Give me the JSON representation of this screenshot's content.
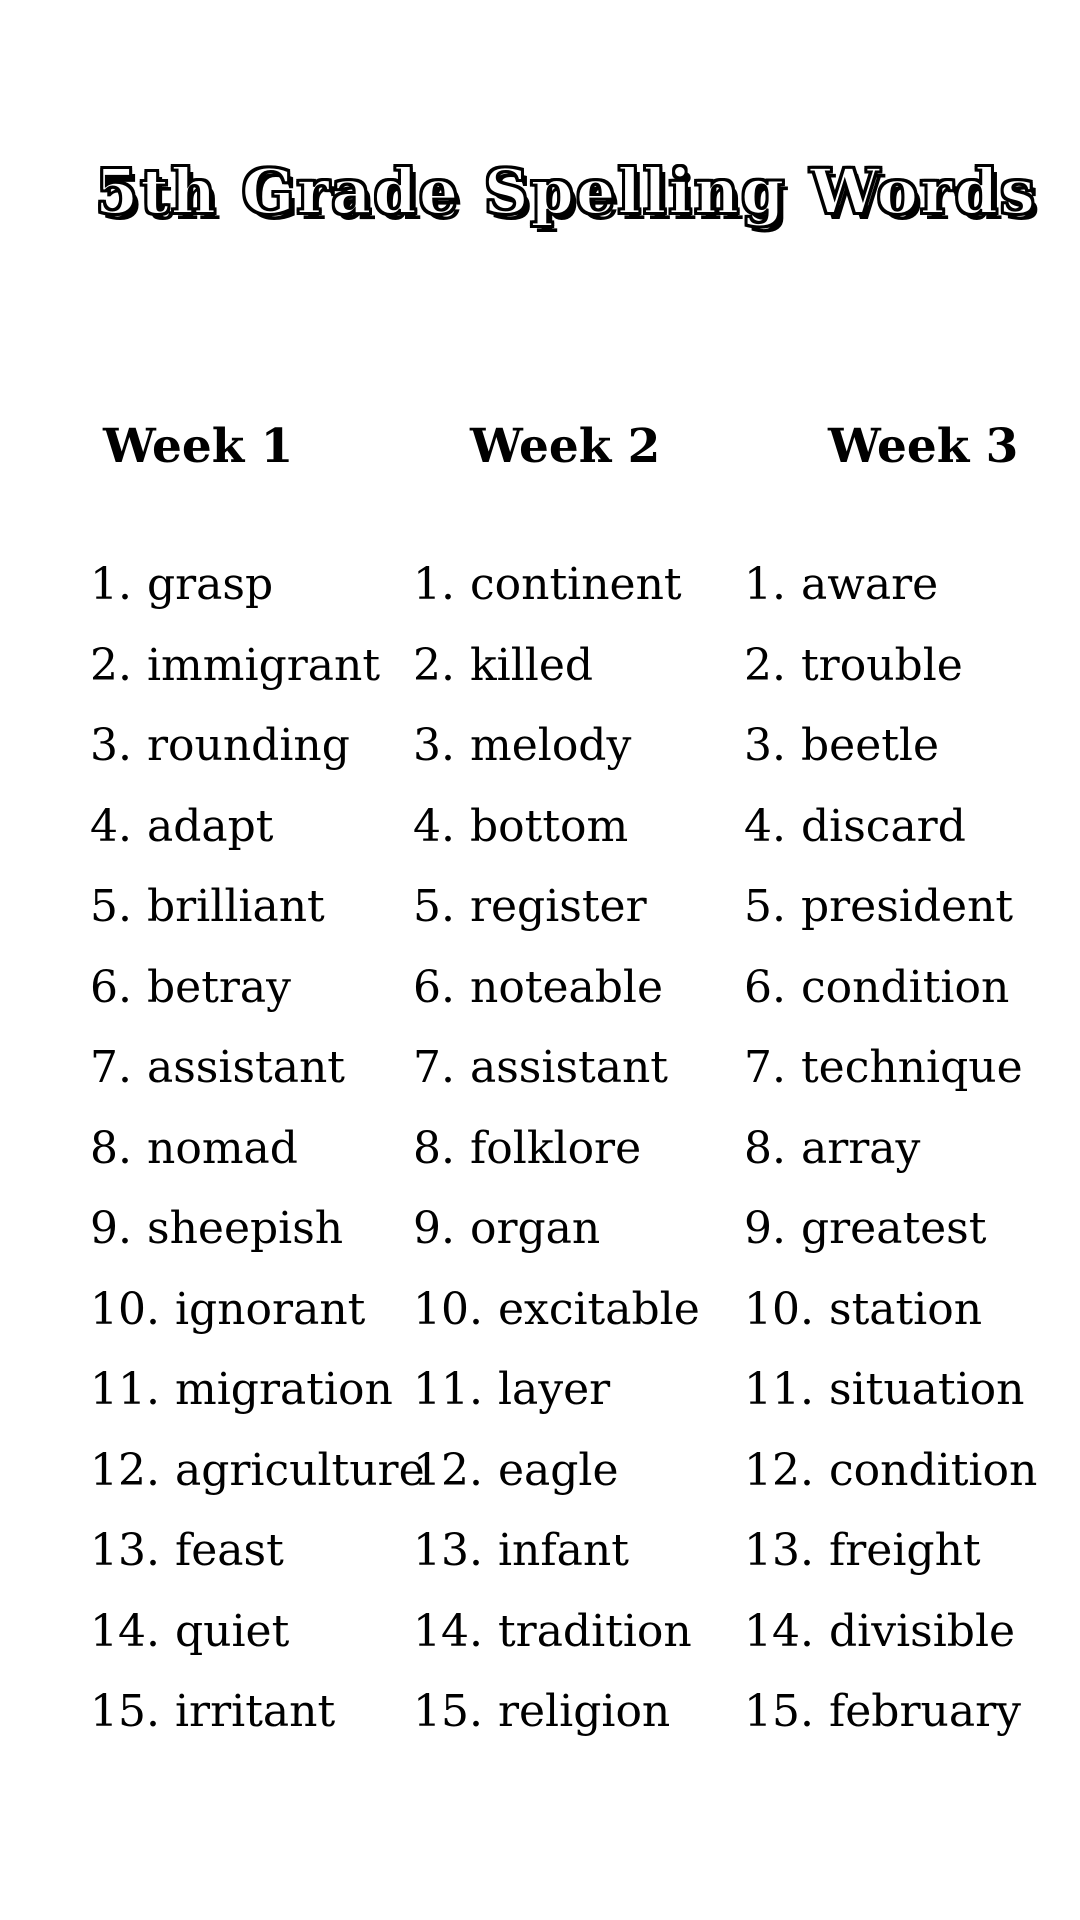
{
  "page": {
    "title": "5th Grade Spelling Words"
  },
  "text_color": "#000000",
  "background_color": "#ffffff",
  "weeks": [
    {
      "label": "Week 1",
      "words": [
        "grasp",
        "immigrant",
        "rounding",
        "adapt",
        "brilliant",
        "betray",
        "assistant",
        "nomad",
        "sheepish",
        "ignorant",
        "migration",
        "agriculture",
        "feast",
        "quiet",
        "irritant"
      ]
    },
    {
      "label": "Week 2",
      "words": [
        "continent",
        "killed",
        "melody",
        "bottom",
        "register",
        "noteable",
        "assistant",
        "folklore",
        "organ",
        "excitable",
        "layer",
        "eagle",
        "infant",
        "tradition",
        "religion"
      ]
    },
    {
      "label": "Week 3",
      "words": [
        "aware",
        "trouble",
        "beetle",
        "discard",
        "president",
        "condition",
        "technique",
        "array",
        "greatest",
        "station",
        "situation",
        "condition",
        "freight",
        "divisible",
        "february"
      ]
    }
  ]
}
